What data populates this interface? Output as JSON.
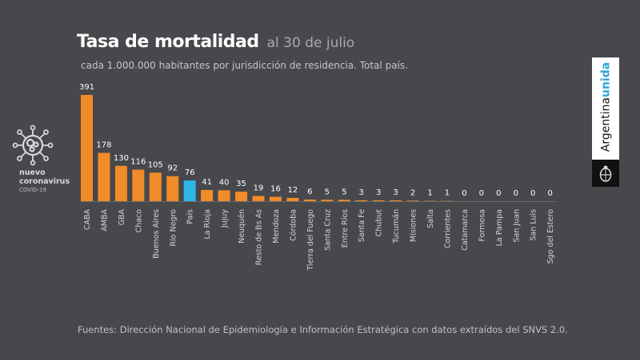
{
  "header": {
    "title": "Tasa de mortalidad",
    "date": "al 30 de julio",
    "subtitle": "cada 1.000.000 habitantes por jurisdicción de residencia. Total país."
  },
  "logo": {
    "line1": "nuevo",
    "line2": "coronavirus",
    "line3": "COVID-19",
    "icon": "virus-icon"
  },
  "brand": {
    "text_main": "Argentina",
    "text_accent": "unida",
    "accent_color": "#2ea3d9",
    "icon": "coat-of-arms-icon"
  },
  "footer": {
    "source": "Fuentes: Dirección Nacional de Epidemiología e Información Estratégica con datos extraídos del SNVS 2.0."
  },
  "colors": {
    "bar": "#f28c28",
    "highlight": "#2fb6e8",
    "background": "#47484c"
  },
  "chart_data": {
    "type": "bar",
    "title": "Tasa de mortalidad al 30 de julio",
    "subtitle": "cada 1.000.000 habitantes por jurisdicción de residencia. Total país.",
    "xlabel": "",
    "ylabel": "",
    "ylim": [
      0,
      391
    ],
    "grid": false,
    "highlight_category": "País",
    "categories": [
      "CABA",
      "AMBA",
      "GBA",
      "Chaco",
      "Buenos Aires",
      "Río Negro",
      "País",
      "La Rioja",
      "Jujuy",
      "Neuquén",
      "Resto de Bs As",
      "Mendoza",
      "Córdoba",
      "Tierra del Fuego",
      "Santa Cruz",
      "Entre Ríos",
      "Santa Fe",
      "Chubut",
      "Tucumán",
      "Misiones",
      "Salta",
      "Corrientes",
      "Catamarca",
      "Formosa",
      "La Pampa",
      "San Juan",
      "San Luis",
      "Sgo del Estero"
    ],
    "values": [
      391,
      178,
      130,
      116,
      105,
      92,
      76,
      41,
      40,
      35,
      19,
      16,
      12,
      6,
      5,
      5,
      3,
      3,
      3,
      2,
      1,
      1,
      0,
      0,
      0,
      0,
      0,
      0
    ]
  }
}
